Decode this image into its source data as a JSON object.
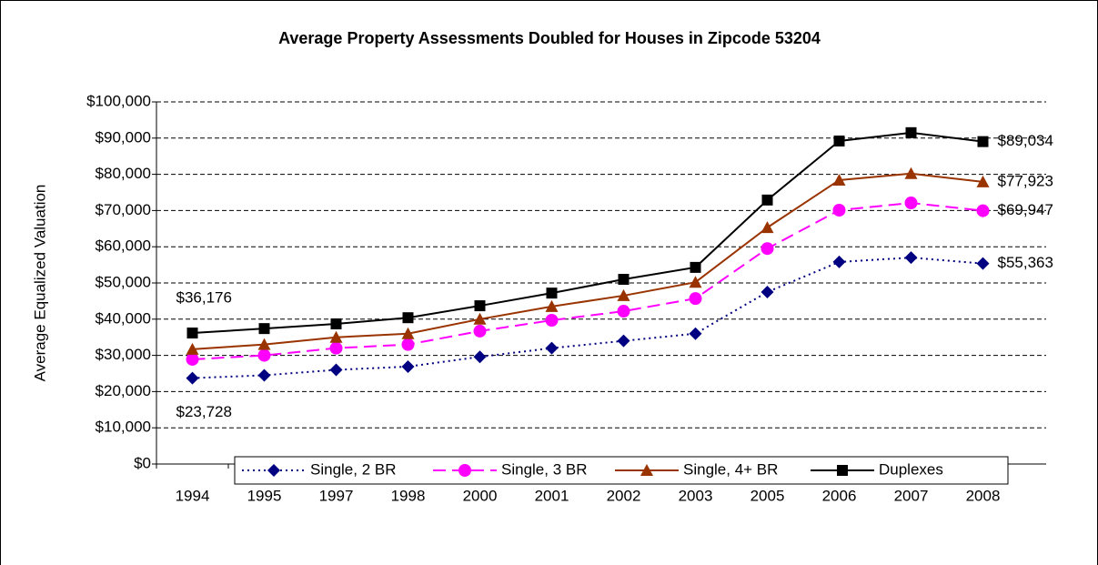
{
  "chart_data": {
    "type": "line",
    "title": "Average Property Assessments Doubled for Houses in Zipcode 53204",
    "y_label": "Average Equalized Valuation",
    "categories": [
      "1994",
      "1995",
      "1997",
      "1998",
      "2000",
      "2001",
      "2002",
      "2003",
      "2005",
      "2006",
      "2007",
      "2008"
    ],
    "series": [
      {
        "name": "Single, 2 BR",
        "color": "#000080",
        "line_style": "dotted",
        "marker": "diamond",
        "values": [
          23728,
          24500,
          26000,
          26900,
          29600,
          32000,
          34000,
          36000,
          47500,
          55800,
          57000,
          55363
        ],
        "value_labels": [
          "$23,728",
          null,
          null,
          null,
          null,
          null,
          null,
          null,
          null,
          null,
          null,
          "$55,363"
        ]
      },
      {
        "name": "Single, 3 BR",
        "color": "#ff00ff",
        "line_style": "dashed",
        "marker": "circle",
        "values": [
          28900,
          30000,
          32000,
          33000,
          36700,
          39700,
          42200,
          45700,
          59500,
          70100,
          72100,
          69947
        ],
        "value_labels": [
          null,
          null,
          null,
          null,
          null,
          null,
          null,
          null,
          null,
          null,
          null,
          "$69,947"
        ]
      },
      {
        "name": "Single, 4+ BR",
        "color": "#993300",
        "line_style": "solid",
        "marker": "triangle",
        "values": [
          31700,
          33000,
          35000,
          36000,
          40000,
          43500,
          46500,
          50200,
          65300,
          78400,
          80200,
          77923
        ],
        "value_labels": [
          null,
          null,
          null,
          null,
          null,
          null,
          null,
          null,
          null,
          null,
          null,
          "$77,923"
        ]
      },
      {
        "name": "Duplexes",
        "color": "#000000",
        "line_style": "solid",
        "marker": "square",
        "values": [
          36176,
          37400,
          38700,
          40400,
          43700,
          47200,
          51000,
          54300,
          72900,
          89200,
          91500,
          89034
        ],
        "value_labels": [
          "$36,176",
          null,
          null,
          null,
          null,
          null,
          null,
          null,
          null,
          null,
          null,
          "$89,034"
        ]
      }
    ],
    "ylim": [
      0,
      100000
    ],
    "yticks": [
      {
        "value": 0,
        "label": "$0"
      },
      {
        "value": 10000,
        "label": "$10,000"
      },
      {
        "value": 20000,
        "label": "$20,000"
      },
      {
        "value": 30000,
        "label": "$30,000"
      },
      {
        "value": 40000,
        "label": "$40,000"
      },
      {
        "value": 50000,
        "label": "$50,000"
      },
      {
        "value": 60000,
        "label": "$60,000"
      },
      {
        "value": 70000,
        "label": "$70,000"
      },
      {
        "value": 80000,
        "label": "$80,000"
      },
      {
        "value": 90000,
        "label": "$90,000"
      },
      {
        "value": 100000,
        "label": "$100,000"
      }
    ],
    "grid": true,
    "legend": "bottom"
  }
}
